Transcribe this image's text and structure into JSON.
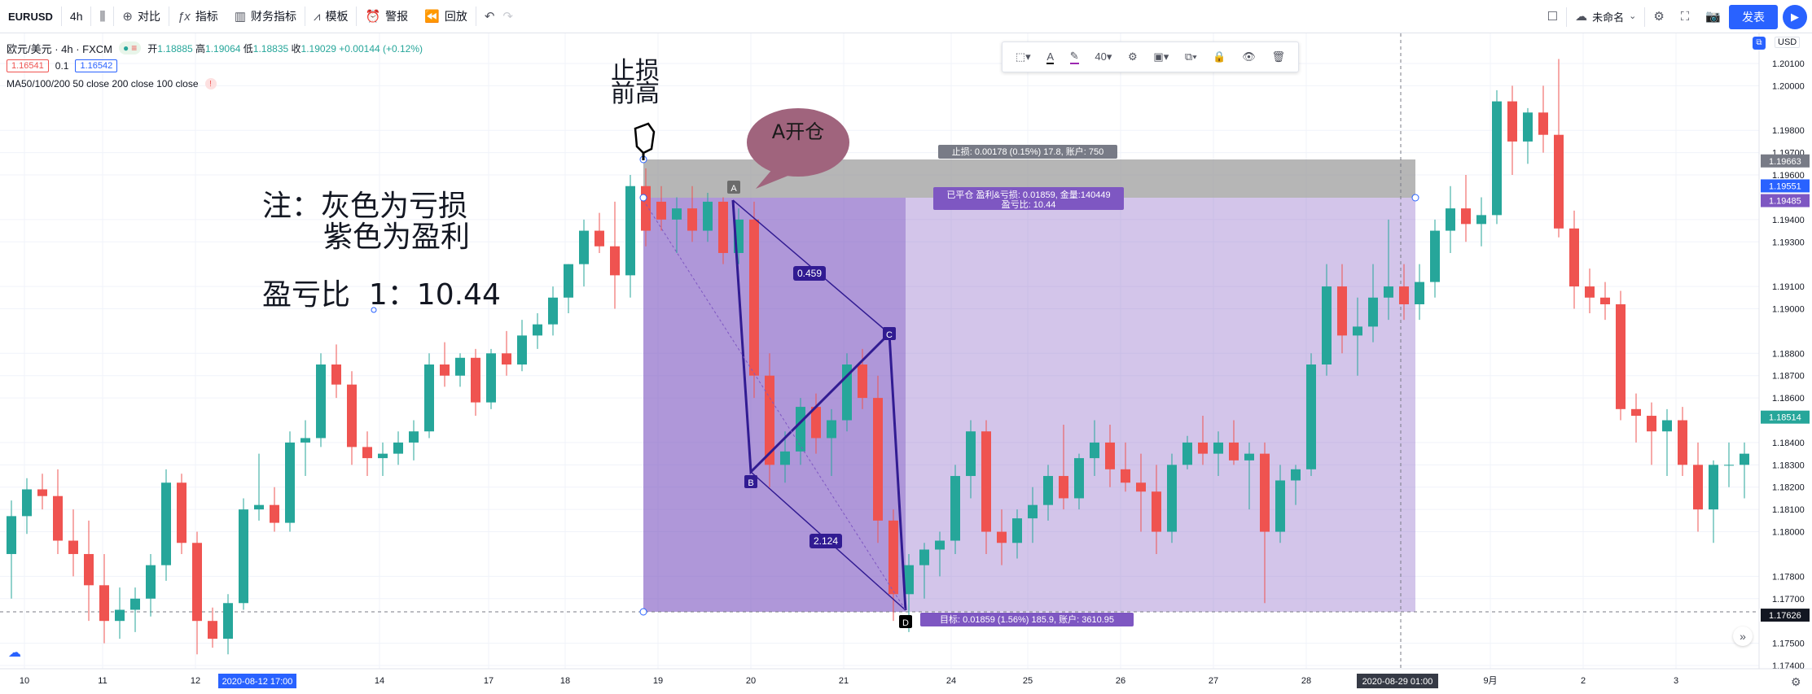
{
  "toolbar": {
    "symbol": "EURUSD",
    "interval": "4h",
    "compare": "对比",
    "indicators": "指标",
    "financials": "财务指标",
    "templates": "模板",
    "alert": "警报",
    "replay": "回放",
    "layout_name": "未命名",
    "publish": "发表"
  },
  "legend": {
    "title": "欧元/美元 · 4h · FXCM",
    "open_label": "开",
    "open": "1.18885",
    "high_label": "高",
    "high": "1.19064",
    "low_label": "低",
    "low": "1.18835",
    "close_label": "收",
    "close": "1.19029",
    "change": "+0.00144 (+0.12%)",
    "bid": "1.16541",
    "spread": "0.1",
    "ask": "1.16542",
    "ma": "MA50/100/200 50 close 200 close 100 close"
  },
  "annotations": {
    "stop_line1": "止损",
    "stop_line2": "前高",
    "bubble": "A开仓",
    "note1": "注：灰色为亏损",
    "note2": "紫色为盈利",
    "ratio": "盈亏比  1：10.44"
  },
  "position": {
    "stop_label": "止损: 0.00178 (0.15%) 17.8, 账户: 750",
    "closed_label_1": "已平仓 盈利&亏损: 0.01859, 金量:140449",
    "closed_label_2": "盈亏比: 10.44",
    "target_label": "目标: 0.01859 (1.56%) 185.9, 账户: 3610.95"
  },
  "pattern": {
    "A": "A",
    "B": "B",
    "C": "C",
    "D": "D",
    "r1": "0.459",
    "r2": "2.124"
  },
  "drawtools": {
    "font_size": "40"
  },
  "price_axis": {
    "currency": "USD",
    "ticks": [
      "1.20100",
      "1.20000",
      "1.19800",
      "1.19700",
      "1.19600",
      "1.19400",
      "1.19300",
      "1.19100",
      "1.19000",
      "1.18800",
      "1.18700",
      "1.18600",
      "1.18400",
      "1.18300",
      "1.18200",
      "1.18100",
      "1.18000",
      "1.17800",
      "1.17700",
      "1.17500",
      "1.17400"
    ],
    "tag_stop": "1.19663",
    "tag_entry": "1.19551",
    "tag_entry2": "1.19485",
    "tag_current": "1.18514",
    "tag_target": "1.17626"
  },
  "time_axis": {
    "ticks": [
      "10",
      "11",
      "12",
      "14",
      "17",
      "18",
      "19",
      "20",
      "21",
      "24",
      "25",
      "26",
      "27",
      "28",
      "9月",
      "2",
      "3"
    ],
    "crosshair_date": "2020-08-12   17:00",
    "crosshair_date2": "2020-08-29   01:00"
  },
  "chart_data": {
    "type": "candlestick",
    "symbol": "EURUSD",
    "timeframe": "4h",
    "colors": {
      "up": "#26a69a",
      "down": "#ef5350",
      "loss_zone": "#9e9e9e",
      "profit_zone": "#7e57c2"
    },
    "ohlc": [
      [
        1.179,
        1.1814,
        1.177,
        1.1807
      ],
      [
        1.1807,
        1.1824,
        1.1799,
        1.1819
      ],
      [
        1.1819,
        1.1826,
        1.181,
        1.1816
      ],
      [
        1.1816,
        1.1828,
        1.179,
        1.1796
      ],
      [
        1.1796,
        1.181,
        1.178,
        1.179
      ],
      [
        1.179,
        1.1805,
        1.176,
        1.1776
      ],
      [
        1.1776,
        1.179,
        1.175,
        1.176
      ],
      [
        1.176,
        1.1775,
        1.1752,
        1.1765
      ],
      [
        1.1765,
        1.1775,
        1.1755,
        1.177
      ],
      [
        1.177,
        1.179,
        1.1762,
        1.1785
      ],
      [
        1.1785,
        1.1828,
        1.1778,
        1.1822
      ],
      [
        1.1822,
        1.1826,
        1.179,
        1.1795
      ],
      [
        1.1795,
        1.18,
        1.1745,
        1.176
      ],
      [
        1.176,
        1.1766,
        1.1748,
        1.1752
      ],
      [
        1.1752,
        1.1772,
        1.1745,
        1.1768
      ],
      [
        1.1768,
        1.1815,
        1.1765,
        1.181
      ],
      [
        1.181,
        1.1835,
        1.1805,
        1.1812
      ],
      [
        1.1812,
        1.182,
        1.18,
        1.1804
      ],
      [
        1.1804,
        1.1845,
        1.18,
        1.184
      ],
      [
        1.184,
        1.185,
        1.1825,
        1.1842
      ],
      [
        1.1842,
        1.188,
        1.1838,
        1.1875
      ],
      [
        1.1875,
        1.1884,
        1.186,
        1.1866
      ],
      [
        1.1866,
        1.1872,
        1.183,
        1.1838
      ],
      [
        1.1838,
        1.1845,
        1.1825,
        1.1833
      ],
      [
        1.1833,
        1.184,
        1.1825,
        1.1835
      ],
      [
        1.1835,
        1.1845,
        1.183,
        1.184
      ],
      [
        1.184,
        1.185,
        1.1832,
        1.1845
      ],
      [
        1.1845,
        1.188,
        1.1842,
        1.1875
      ],
      [
        1.1875,
        1.1885,
        1.1865,
        1.187
      ],
      [
        1.187,
        1.188,
        1.1865,
        1.1878
      ],
      [
        1.1878,
        1.1882,
        1.1852,
        1.1858
      ],
      [
        1.1858,
        1.1882,
        1.1855,
        1.188
      ],
      [
        1.188,
        1.189,
        1.187,
        1.1875
      ],
      [
        1.1875,
        1.1895,
        1.1872,
        1.1888
      ],
      [
        1.1888,
        1.1898,
        1.1882,
        1.1893
      ],
      [
        1.1893,
        1.191,
        1.1888,
        1.1905
      ],
      [
        1.1905,
        1.192,
        1.1898,
        1.192
      ],
      [
        1.192,
        1.194,
        1.191,
        1.1935
      ],
      [
        1.1935,
        1.1943,
        1.1925,
        1.1928
      ],
      [
        1.1928,
        1.1948,
        1.19,
        1.1915
      ],
      [
        1.1915,
        1.196,
        1.1905,
        1.1955
      ],
      [
        1.1955,
        1.1963,
        1.1928,
        1.1935
      ]
    ]
  }
}
